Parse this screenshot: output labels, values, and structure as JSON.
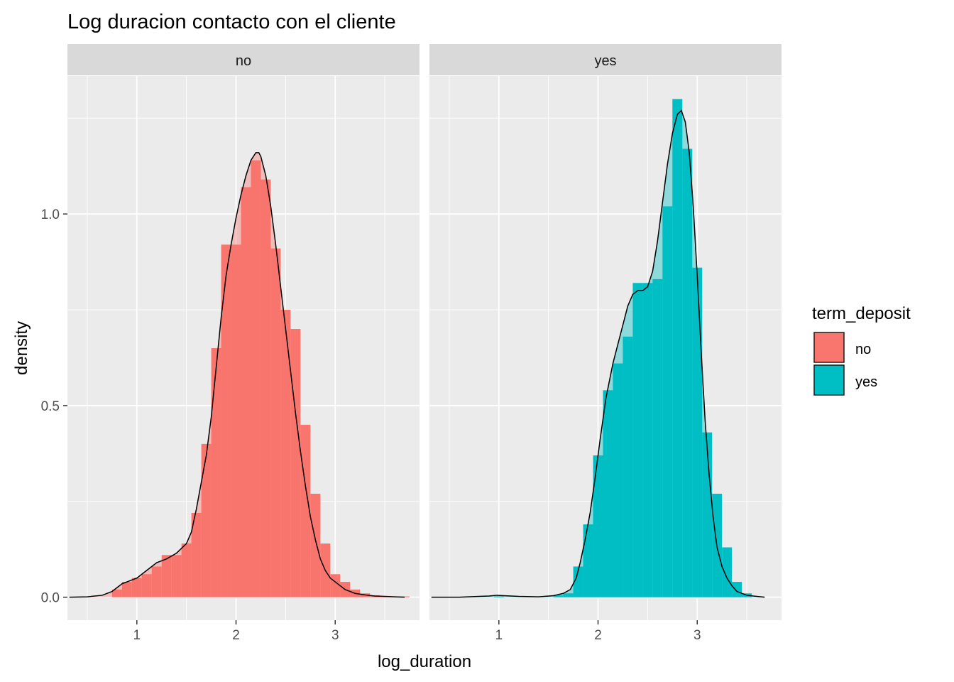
{
  "chart_data": {
    "type": "histogram_density_facet",
    "title": "Log duracion contacto con el cliente",
    "xlabel": "log_duration",
    "ylabel": "density",
    "xlim": [
      0.3,
      3.85
    ],
    "ylim": [
      -0.06,
      1.36
    ],
    "x_ticks": [
      1,
      2,
      3
    ],
    "x_tick_labels": [
      "1",
      "2",
      "3"
    ],
    "y_ticks": [
      0.0,
      0.5,
      1.0
    ],
    "y_tick_labels": [
      "0.0",
      "0.5",
      "1.0"
    ],
    "grid": true,
    "bin_width": 0.1,
    "legend": {
      "title": "term_deposit",
      "placement": "right",
      "entries": [
        {
          "label": "no",
          "color": "#F8766D"
        },
        {
          "label": "yes",
          "color": "#00BFC4"
        }
      ]
    },
    "panels": [
      {
        "label": "no",
        "color": "#F8766D",
        "bins": [
          {
            "x0": 0.75,
            "x1": 0.85,
            "density": 0.02
          },
          {
            "x0": 0.85,
            "x1": 0.95,
            "density": 0.04
          },
          {
            "x0": 0.95,
            "x1": 1.05,
            "density": 0.05
          },
          {
            "x0": 1.05,
            "x1": 1.15,
            "density": 0.06
          },
          {
            "x0": 1.15,
            "x1": 1.25,
            "density": 0.08
          },
          {
            "x0": 1.25,
            "x1": 1.35,
            "density": 0.11
          },
          {
            "x0": 1.35,
            "x1": 1.45,
            "density": 0.11
          },
          {
            "x0": 1.45,
            "x1": 1.55,
            "density": 0.14
          },
          {
            "x0": 1.55,
            "x1": 1.65,
            "density": 0.22
          },
          {
            "x0": 1.65,
            "x1": 1.75,
            "density": 0.4
          },
          {
            "x0": 1.75,
            "x1": 1.85,
            "density": 0.65
          },
          {
            "x0": 1.85,
            "x1": 1.95,
            "density": 0.92
          },
          {
            "x0": 1.95,
            "x1": 2.05,
            "density": 0.92
          },
          {
            "x0": 2.05,
            "x1": 2.15,
            "density": 1.07
          },
          {
            "x0": 2.15,
            "x1": 2.25,
            "density": 1.14
          },
          {
            "x0": 2.25,
            "x1": 2.35,
            "density": 1.09
          },
          {
            "x0": 2.35,
            "x1": 2.45,
            "density": 0.91
          },
          {
            "x0": 2.45,
            "x1": 2.55,
            "density": 0.75
          },
          {
            "x0": 2.55,
            "x1": 2.65,
            "density": 0.7
          },
          {
            "x0": 2.65,
            "x1": 2.75,
            "density": 0.45
          },
          {
            "x0": 2.75,
            "x1": 2.85,
            "density": 0.27
          },
          {
            "x0": 2.85,
            "x1": 2.95,
            "density": 0.14
          },
          {
            "x0": 2.95,
            "x1": 3.05,
            "density": 0.06
          },
          {
            "x0": 3.05,
            "x1": 3.15,
            "density": 0.04
          },
          {
            "x0": 3.15,
            "x1": 3.25,
            "density": 0.02
          },
          {
            "x0": 3.25,
            "x1": 3.35,
            "density": 0.01
          },
          {
            "x0": 3.35,
            "x1": 3.45,
            "density": 0.005
          },
          {
            "x0": 3.45,
            "x1": 3.55,
            "density": 0.003
          },
          {
            "x0": 3.55,
            "x1": 3.65,
            "density": 0.002
          },
          {
            "x0": 3.65,
            "x1": 3.75,
            "density": 0.002
          }
        ],
        "density_curve": {
          "x": [
            0.32,
            0.5,
            0.65,
            0.75,
            0.8,
            0.85,
            0.9,
            1.0,
            1.1,
            1.2,
            1.3,
            1.4,
            1.5,
            1.55,
            1.6,
            1.65,
            1.7,
            1.75,
            1.8,
            1.85,
            1.9,
            1.95,
            2.0,
            2.05,
            2.1,
            2.15,
            2.2,
            2.23,
            2.25,
            2.3,
            2.35,
            2.4,
            2.45,
            2.5,
            2.55,
            2.6,
            2.65,
            2.7,
            2.75,
            2.8,
            2.85,
            2.9,
            2.95,
            3.0,
            3.1,
            3.2,
            3.3,
            3.4,
            3.5,
            3.6,
            3.7
          ],
          "y": [
            0.0,
            0.001,
            0.005,
            0.015,
            0.025,
            0.035,
            0.04,
            0.05,
            0.07,
            0.09,
            0.1,
            0.115,
            0.14,
            0.17,
            0.23,
            0.3,
            0.37,
            0.47,
            0.6,
            0.73,
            0.84,
            0.92,
            0.99,
            1.05,
            1.1,
            1.14,
            1.16,
            1.16,
            1.15,
            1.1,
            1.02,
            0.92,
            0.81,
            0.7,
            0.59,
            0.48,
            0.38,
            0.29,
            0.21,
            0.15,
            0.1,
            0.07,
            0.05,
            0.04,
            0.02,
            0.01,
            0.006,
            0.003,
            0.002,
            0.001,
            0.0
          ]
        }
      },
      {
        "label": "yes",
        "color": "#00BFC4",
        "bins": [
          {
            "x0": 0.95,
            "x1": 1.05,
            "density": 0.002
          },
          {
            "x0": 1.55,
            "x1": 1.65,
            "density": 0.005
          },
          {
            "x0": 1.65,
            "x1": 1.75,
            "density": 0.01
          },
          {
            "x0": 1.75,
            "x1": 1.85,
            "density": 0.08
          },
          {
            "x0": 1.85,
            "x1": 1.95,
            "density": 0.19
          },
          {
            "x0": 1.95,
            "x1": 2.05,
            "density": 0.37
          },
          {
            "x0": 2.05,
            "x1": 2.15,
            "density": 0.54
          },
          {
            "x0": 2.15,
            "x1": 2.25,
            "density": 0.61
          },
          {
            "x0": 2.25,
            "x1": 2.35,
            "density": 0.68
          },
          {
            "x0": 2.35,
            "x1": 2.45,
            "density": 0.82
          },
          {
            "x0": 2.45,
            "x1": 2.55,
            "density": 0.82
          },
          {
            "x0": 2.55,
            "x1": 2.65,
            "density": 0.83
          },
          {
            "x0": 2.65,
            "x1": 2.75,
            "density": 1.02
          },
          {
            "x0": 2.75,
            "x1": 2.85,
            "density": 1.3
          },
          {
            "x0": 2.85,
            "x1": 2.95,
            "density": 1.17
          },
          {
            "x0": 2.95,
            "x1": 3.05,
            "density": 0.86
          },
          {
            "x0": 3.05,
            "x1": 3.15,
            "density": 0.43
          },
          {
            "x0": 3.15,
            "x1": 3.25,
            "density": 0.27
          },
          {
            "x0": 3.25,
            "x1": 3.35,
            "density": 0.13
          },
          {
            "x0": 3.35,
            "x1": 3.45,
            "density": 0.04
          },
          {
            "x0": 3.45,
            "x1": 3.55,
            "density": 0.01
          }
        ],
        "density_curve": {
          "x": [
            0.32,
            0.6,
            0.8,
            0.9,
            0.98,
            1.05,
            1.2,
            1.4,
            1.55,
            1.65,
            1.72,
            1.78,
            1.82,
            1.87,
            1.92,
            1.97,
            2.02,
            2.08,
            2.15,
            2.2,
            2.25,
            2.3,
            2.35,
            2.4,
            2.45,
            2.5,
            2.55,
            2.6,
            2.65,
            2.7,
            2.75,
            2.8,
            2.84,
            2.88,
            2.92,
            2.96,
            3.0,
            3.04,
            3.08,
            3.12,
            3.16,
            3.2,
            3.25,
            3.3,
            3.35,
            3.4,
            3.5,
            3.6,
            3.68
          ],
          "y": [
            0.0,
            0.0,
            0.002,
            0.003,
            0.005,
            0.004,
            0.002,
            0.001,
            0.004,
            0.01,
            0.02,
            0.05,
            0.09,
            0.15,
            0.22,
            0.31,
            0.41,
            0.52,
            0.61,
            0.66,
            0.71,
            0.76,
            0.79,
            0.8,
            0.8,
            0.81,
            0.85,
            0.93,
            1.03,
            1.13,
            1.21,
            1.26,
            1.27,
            1.24,
            1.16,
            1.02,
            0.84,
            0.64,
            0.46,
            0.32,
            0.21,
            0.13,
            0.08,
            0.05,
            0.03,
            0.015,
            0.005,
            0.002,
            0.0
          ]
        }
      }
    ]
  }
}
